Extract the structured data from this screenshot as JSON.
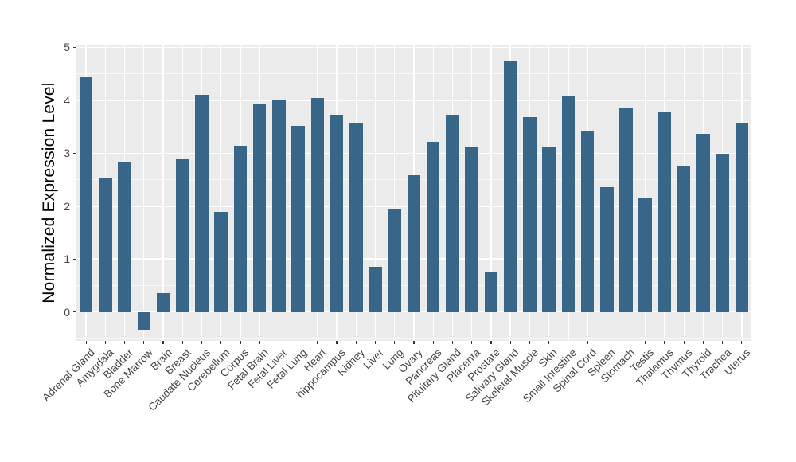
{
  "colors": {
    "bar": "#376689",
    "panel_bg": "#EBEBEB",
    "grid_major": "#FFFFFF",
    "grid_minor": "#F5F5F5",
    "axis_text": "#454545",
    "axis_title": "#000000",
    "tick_mark": "#333333",
    "figure_bg": "#FFFFFF"
  },
  "chart_data": {
    "type": "bar",
    "title": "",
    "xlabel": "",
    "ylabel": "Normalized Expression Level",
    "ylim": [
      -0.55,
      5.05
    ],
    "yticks": [
      0,
      1,
      2,
      3,
      4,
      5
    ],
    "grid": "white major and minor horizontal lines plus vertical line at each category center, on light gray panel",
    "legend_position": "none",
    "x_label_rotation_deg": 45,
    "categories": [
      "Adrenal Gland",
      "Amygdala",
      "Bladder",
      "Bone Marrow",
      "Brain",
      "Breast",
      "Caudate Nucleus",
      "Cerebellum",
      "Corpus",
      "Fetal Brain",
      "Fetal Liver",
      "Fetal Lung",
      "Heart",
      "hippocampus",
      "Kidney",
      "Liver",
      "Lung",
      "Ovary",
      "Pancreas",
      "Pituitary Gland",
      "Placenta",
      "Prostate",
      "Salivary Gland",
      "Skeletal Muscle",
      "Skin",
      "Small Intestine",
      "Spinal Cord",
      "Spleen",
      "Stomach",
      "Testis",
      "Thalamus",
      "Thymus",
      "Thyroid",
      "Trachea",
      "Uterus"
    ],
    "values": [
      4.44,
      2.52,
      2.82,
      -0.33,
      0.36,
      2.88,
      4.1,
      1.89,
      3.14,
      3.92,
      4.02,
      3.52,
      4.05,
      3.71,
      3.57,
      0.85,
      1.93,
      2.58,
      3.22,
      3.73,
      3.12,
      0.76,
      4.75,
      3.68,
      3.11,
      4.07,
      3.41,
      2.36,
      3.87,
      2.14,
      3.77,
      2.75,
      3.37,
      2.99,
      3.57
    ]
  }
}
